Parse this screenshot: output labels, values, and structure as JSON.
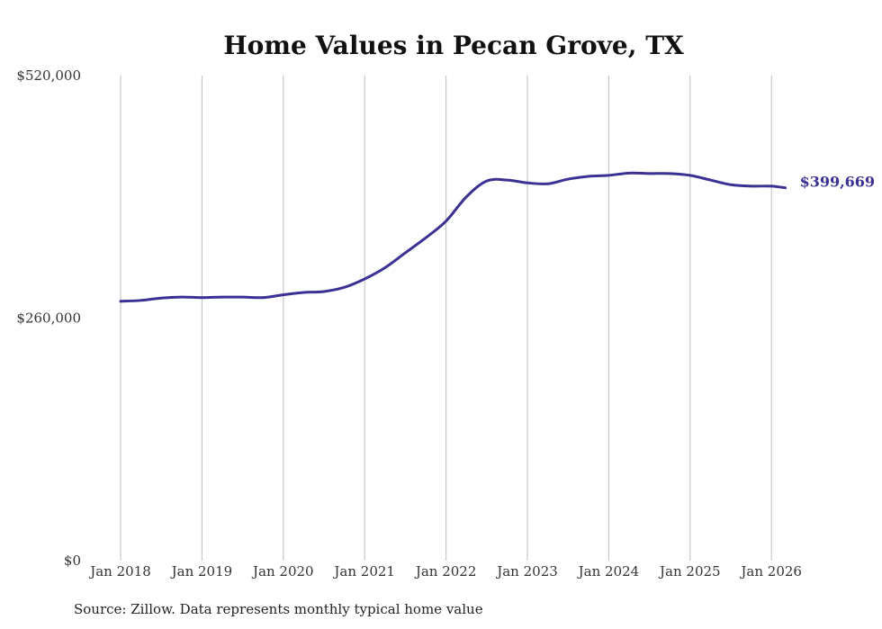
{
  "chart_data": {
    "type": "line",
    "title": "Home Values in Pecan Grove, TX",
    "xlabel": "",
    "ylabel": "",
    "ylim": [
      0,
      520000
    ],
    "y_ticks": [
      {
        "value": 0,
        "label": "$0"
      },
      {
        "value": 260000,
        "label": "$260,000"
      },
      {
        "value": 520000,
        "label": "$520,000"
      }
    ],
    "x_ticks": [
      {
        "value": 2018.0,
        "label": "Jan 2018"
      },
      {
        "value": 2019.0,
        "label": "Jan 2019"
      },
      {
        "value": 2020.0,
        "label": "Jan 2020"
      },
      {
        "value": 2021.0,
        "label": "Jan 2021"
      },
      {
        "value": 2022.0,
        "label": "Jan 2022"
      },
      {
        "value": 2023.0,
        "label": "Jan 2023"
      },
      {
        "value": 2024.0,
        "label": "Jan 2024"
      },
      {
        "value": 2025.0,
        "label": "Jan 2025"
      },
      {
        "value": 2026.0,
        "label": "Jan 2026"
      }
    ],
    "xlim": [
      2018.0,
      2026.17
    ],
    "grid": "vertical",
    "series": [
      {
        "name": "Pecan Grove, TX",
        "color": "#3b3194",
        "end_label": "$399,669",
        "x": [
          2018.0,
          2018.25,
          2018.5,
          2018.75,
          2019.0,
          2019.25,
          2019.5,
          2019.75,
          2020.0,
          2020.25,
          2020.5,
          2020.75,
          2021.0,
          2021.25,
          2021.5,
          2021.75,
          2022.0,
          2022.25,
          2022.5,
          2022.75,
          2023.0,
          2023.25,
          2023.5,
          2023.75,
          2024.0,
          2024.25,
          2024.5,
          2024.75,
          2025.0,
          2025.25,
          2025.5,
          2025.75,
          2026.0,
          2026.17
        ],
        "values": [
          278000,
          279000,
          281500,
          282500,
          282000,
          282500,
          282500,
          282000,
          285000,
          287500,
          288500,
          293000,
          302000,
          314000,
          330000,
          346000,
          364000,
          390000,
          407000,
          408000,
          405000,
          404000,
          409000,
          412000,
          413000,
          415500,
          415000,
          415000,
          413000,
          408000,
          403000,
          401500,
          401500,
          399669
        ]
      }
    ]
  },
  "footer": {
    "source": "Source: Zillow. Data represents monthly typical home value"
  }
}
